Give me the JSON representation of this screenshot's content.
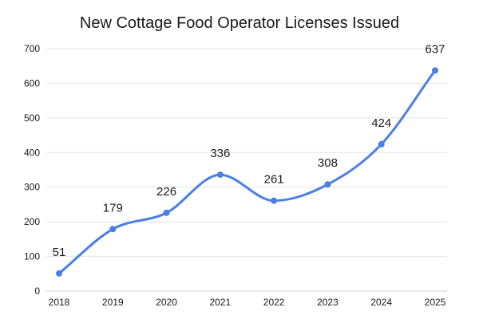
{
  "chart_data": {
    "type": "line",
    "title": "New Cottage Food Operator Licenses Issued",
    "xlabel": "",
    "ylabel": "",
    "x": [
      "2018",
      "2019",
      "2020",
      "2021",
      "2022",
      "2023",
      "2024",
      "2025"
    ],
    "series": [
      {
        "values": [
          51,
          179,
          226,
          336,
          261,
          308,
          424,
          637
        ],
        "color": "#4a7fe8"
      }
    ],
    "ylim": [
      0,
      700
    ],
    "yticks": [
      0,
      100,
      200,
      300,
      400,
      500,
      600,
      700
    ],
    "grid": true,
    "legend": "none",
    "smooth": true
  }
}
